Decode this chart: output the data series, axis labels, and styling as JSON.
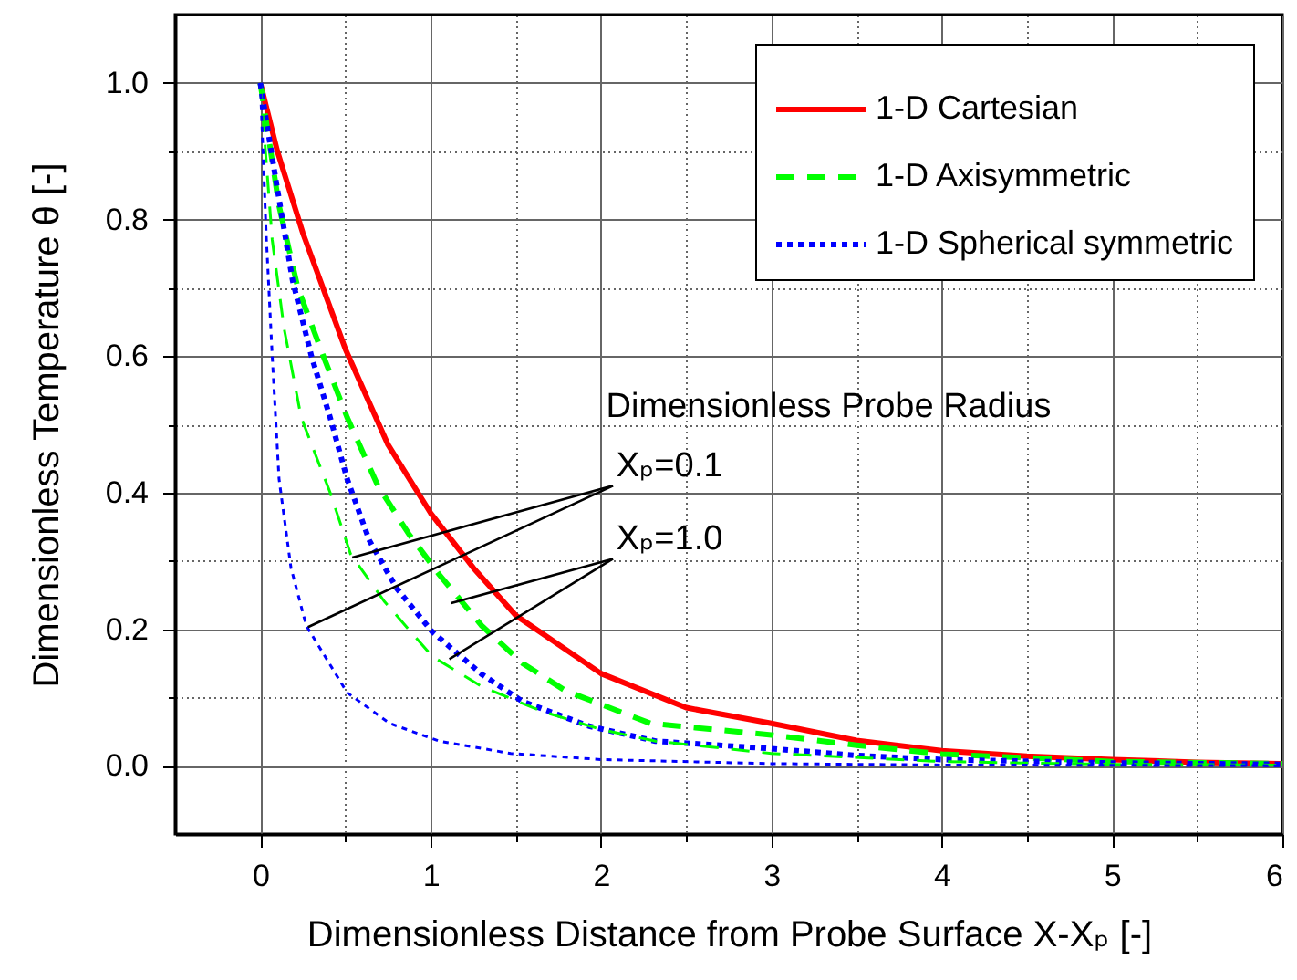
{
  "chart_data": {
    "type": "line",
    "xlabel": "Dimensionless Distance from Probe Surface X-Xₚ [-]",
    "ylabel": "Dimensionless Temperature θ [-]",
    "xlim": [
      -0.5,
      6
    ],
    "ylim": [
      -0.1,
      1.1
    ],
    "xticks": [
      0,
      {
        "value": 0.5,
        "label": null
      },
      1,
      {
        "value": 1.5,
        "label": null
      },
      2,
      {
        "value": 2.5,
        "label": null
      },
      3,
      {
        "value": 3.5,
        "label": null
      },
      4,
      {
        "value": 4.5,
        "label": null
      },
      5,
      {
        "value": 5.5,
        "label": null
      },
      6
    ],
    "yticks": [
      {
        "value": 0,
        "label": "0.0"
      },
      {
        "value": 0.1,
        "label": null
      },
      {
        "value": 0.2,
        "label": "0.2"
      },
      {
        "value": 0.3,
        "label": null
      },
      {
        "value": 0.4,
        "label": "0.4"
      },
      {
        "value": 0.5,
        "label": null
      },
      {
        "value": 0.6,
        "label": "0.6"
      },
      {
        "value": 0.7,
        "label": null
      },
      {
        "value": 0.8,
        "label": "0.8"
      },
      {
        "value": 0.9,
        "label": null
      },
      {
        "value": 1,
        "label": "1.0"
      }
    ],
    "grid": true,
    "legend": "top right",
    "annotations": [
      "Dimensionless Probe Radius",
      {
        "text": "Xₚ=0.1",
        "x": 0.54,
        "y": 0.305
      },
      {
        "text": "Xₚ=1.0",
        "x": 1.12,
        "y": 0.238
      }
    ],
    "series": [
      {
        "name": "1-D Cartesian",
        "color": "#ff0000",
        "line_style": "solid",
        "x": [
          0,
          0.1,
          0.25,
          0.5,
          0.75,
          1,
          1.25,
          1.5,
          2,
          2.5,
          3,
          3.5,
          4,
          4.5,
          5,
          5.5,
          6
        ],
        "values": [
          1,
          0.9,
          0.78,
          0.61,
          0.47,
          0.37,
          0.29,
          0.22,
          0.135,
          0.085,
          0.062,
          0.037,
          0.022,
          0.014,
          0.009,
          0.005,
          0.003
        ]
      },
      {
        "name": "1-D Axisymmetric",
        "color": "#00ff00",
        "line_style": "dashed",
        "x": [
          0,
          0.11,
          0.22,
          0.37,
          0.51,
          0.69,
          0.87,
          1.05,
          1.3,
          1.54,
          1.79,
          2.29,
          3,
          3.5,
          4,
          5,
          6
        ],
        "values": [
          1,
          0.82,
          0.7,
          0.6,
          0.51,
          0.41,
          0.34,
          0.28,
          0.205,
          0.15,
          0.11,
          0.062,
          0.045,
          0.03,
          0.017,
          0.006,
          0.003
        ]
      },
      {
        "name": "1-D Spherical symmetric",
        "color": "#0000ff",
        "line_style": "dotted",
        "x": [
          0,
          0.09,
          0.19,
          0.3,
          0.41,
          0.51,
          0.64,
          0.8,
          1.01,
          1.3,
          1.54,
          1.93,
          2.32,
          3,
          3.5,
          4,
          5,
          6
        ],
        "values": [
          1,
          0.86,
          0.71,
          0.6,
          0.51,
          0.42,
          0.33,
          0.26,
          0.196,
          0.134,
          0.094,
          0.058,
          0.036,
          0.025,
          0.015,
          0.009,
          0.004,
          0.002
        ]
      },
      {
        "color": "#00ff00",
        "line_style": "dashed",
        "x": [
          0,
          0.07,
          0.14,
          0.24,
          0.41,
          0.53,
          0.73,
          1.01,
          1.3,
          1.65,
          2,
          2.32,
          3,
          4,
          5,
          6
        ],
        "values": [
          1,
          0.77,
          0.64,
          0.51,
          0.4,
          0.31,
          0.24,
          0.16,
          0.116,
          0.08,
          0.053,
          0.036,
          0.018,
          0.006,
          0.002,
          0.001
        ]
      },
      {
        "color": "#0000ff",
        "line_style": "dotted",
        "x": [
          0,
          0.036,
          0.07,
          0.11,
          0.18,
          0.27,
          0.51,
          0.76,
          1.05,
          1.47,
          2,
          3,
          4,
          6
        ],
        "values": [
          1,
          0.77,
          0.6,
          0.42,
          0.29,
          0.205,
          0.107,
          0.062,
          0.036,
          0.018,
          0.009,
          0.003,
          0.001,
          0
        ]
      }
    ]
  }
}
